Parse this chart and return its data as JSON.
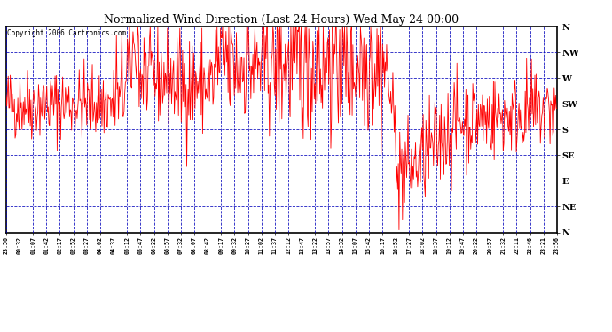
{
  "title": "Normalized Wind Direction (Last 24 Hours) Wed May 24 00:00",
  "copyright": "Copyright 2006 Cartronics.com",
  "background_color": "#ffffff",
  "plot_bg_color": "#ffffff",
  "grid_color": "#0000bb",
  "line_color": "#ff0000",
  "ytick_labels": [
    "N",
    "NW",
    "W",
    "SW",
    "S",
    "SE",
    "E",
    "NE",
    "N"
  ],
  "ytick_values": [
    8,
    7,
    6,
    5,
    4,
    3,
    2,
    1,
    0
  ],
  "xtick_labels": [
    "23:56",
    "00:32",
    "01:07",
    "01:42",
    "02:17",
    "02:52",
    "03:27",
    "04:02",
    "04:37",
    "05:12",
    "05:47",
    "06:22",
    "06:57",
    "07:32",
    "08:07",
    "08:42",
    "09:17",
    "09:32",
    "10:27",
    "11:02",
    "11:37",
    "12:12",
    "12:47",
    "13:22",
    "13:57",
    "14:32",
    "15:07",
    "15:42",
    "16:17",
    "16:52",
    "17:27",
    "18:02",
    "18:37",
    "19:12",
    "19:47",
    "20:22",
    "20:57",
    "21:32",
    "22:11",
    "22:46",
    "23:21",
    "23:56"
  ],
  "ylim": [
    0,
    8
  ],
  "num_points": 800,
  "seed": 42
}
